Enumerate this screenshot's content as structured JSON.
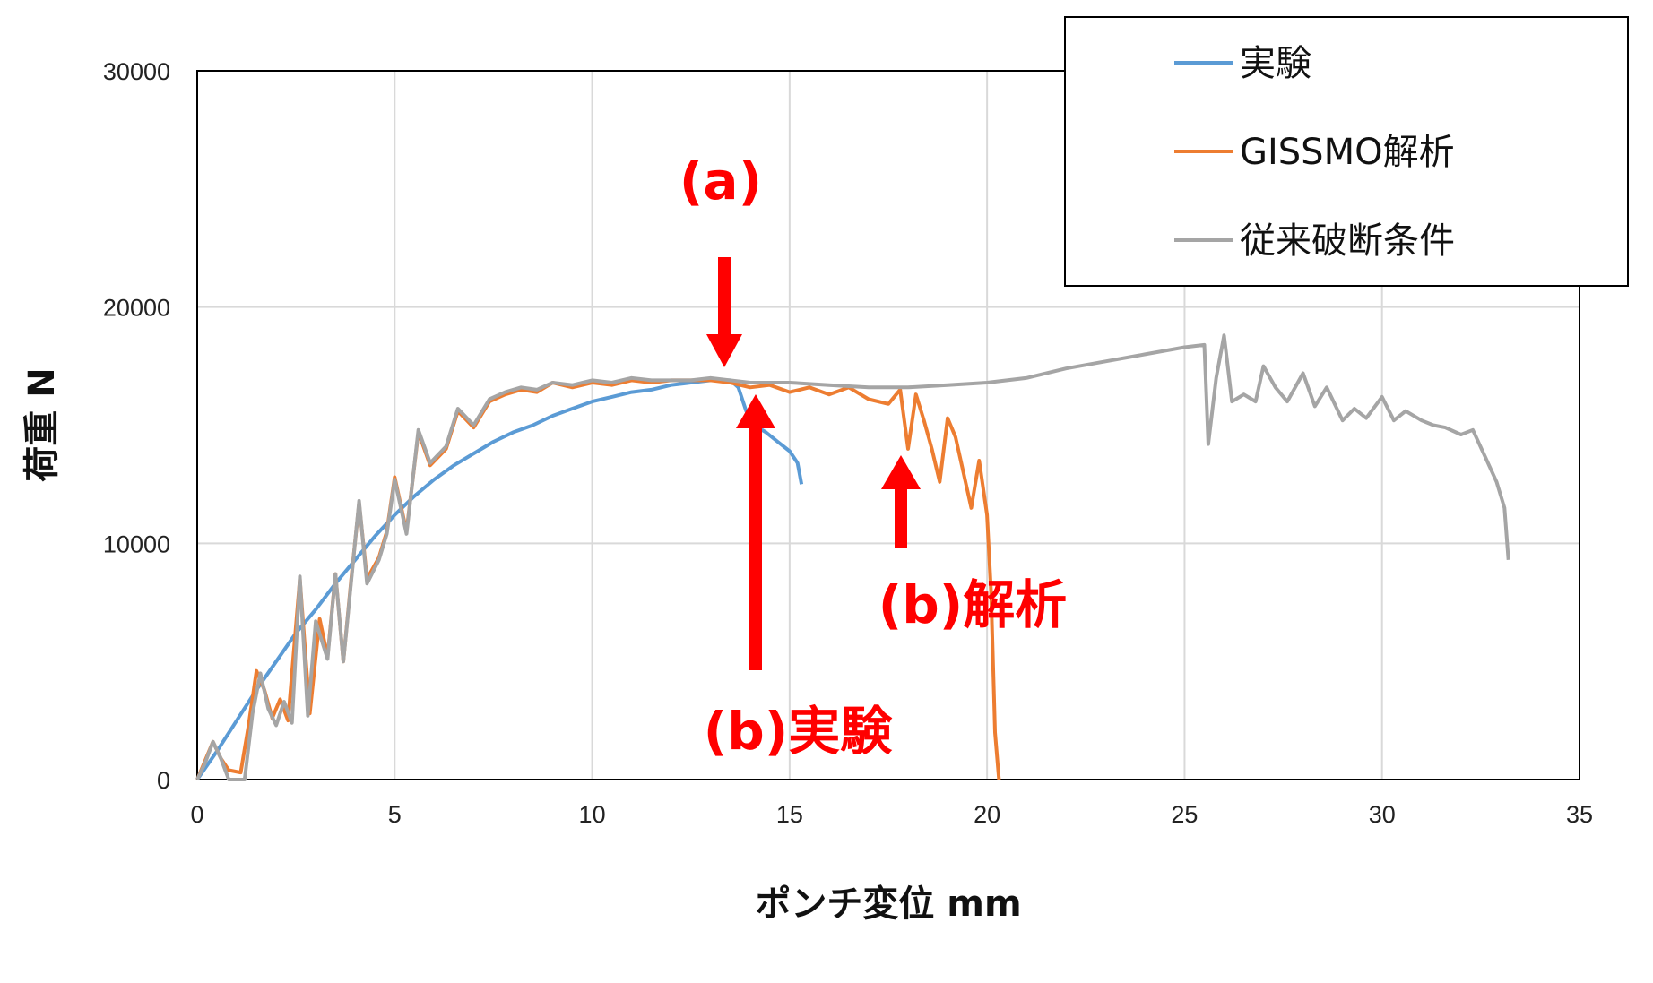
{
  "chart_data": {
    "type": "line",
    "xlabel": "ポンチ変位 mm",
    "ylabel": "荷重 N",
    "xlim": [
      0,
      35
    ],
    "ylim": [
      0,
      30000
    ],
    "x_ticks": [
      0,
      5,
      10,
      15,
      20,
      25,
      30,
      35
    ],
    "y_ticks": [
      0,
      10000,
      20000,
      30000
    ],
    "x_tick_labels": [
      "0",
      "5",
      "10",
      "15",
      "20",
      "25",
      "30",
      "35"
    ],
    "y_tick_labels": [
      "0",
      "10000",
      "20000",
      "30000"
    ],
    "grid": true,
    "legend_position": "top-right",
    "series": [
      {
        "name": "実験",
        "color": "#5B9BD5",
        "points": [
          [
            0,
            0
          ],
          [
            0.5,
            1200
          ],
          [
            1,
            2500
          ],
          [
            1.5,
            3800
          ],
          [
            2,
            5000
          ],
          [
            2.5,
            6200
          ],
          [
            3,
            7200
          ],
          [
            3.5,
            8300
          ],
          [
            4,
            9300
          ],
          [
            4.5,
            10300
          ],
          [
            5,
            11200
          ],
          [
            5.5,
            12000
          ],
          [
            6,
            12700
          ],
          [
            6.5,
            13300
          ],
          [
            7,
            13800
          ],
          [
            7.5,
            14300
          ],
          [
            8,
            14700
          ],
          [
            8.5,
            15000
          ],
          [
            9,
            15400
          ],
          [
            9.5,
            15700
          ],
          [
            10,
            16000
          ],
          [
            10.5,
            16200
          ],
          [
            11,
            16400
          ],
          [
            11.5,
            16500
          ],
          [
            12,
            16700
          ],
          [
            12.5,
            16800
          ],
          [
            13,
            16900
          ],
          [
            13.5,
            16900
          ],
          [
            13.7,
            16600
          ],
          [
            13.9,
            15600
          ],
          [
            14.1,
            15000
          ],
          [
            14.4,
            14700
          ],
          [
            14.7,
            14300
          ],
          [
            15,
            13900
          ],
          [
            15.2,
            13400
          ],
          [
            15.3,
            12500
          ]
        ]
      },
      {
        "name": "GISSMO解析",
        "color": "#ED7D31",
        "points": [
          [
            0,
            0
          ],
          [
            0.2,
            800
          ],
          [
            0.4,
            1600
          ],
          [
            0.6,
            900
          ],
          [
            0.8,
            400
          ],
          [
            1.1,
            300
          ],
          [
            1.3,
            2300
          ],
          [
            1.5,
            4600
          ],
          [
            1.7,
            3800
          ],
          [
            1.9,
            2600
          ],
          [
            2.1,
            3400
          ],
          [
            2.3,
            2500
          ],
          [
            2.6,
            8500
          ],
          [
            2.85,
            2800
          ],
          [
            3.1,
            6800
          ],
          [
            3.3,
            5200
          ],
          [
            3.5,
            8700
          ],
          [
            3.7,
            5000
          ],
          [
            3.9,
            8500
          ],
          [
            4.1,
            11700
          ],
          [
            4.3,
            8500
          ],
          [
            4.6,
            9400
          ],
          [
            4.8,
            10500
          ],
          [
            5,
            12800
          ],
          [
            5.3,
            10500
          ],
          [
            5.6,
            14700
          ],
          [
            5.9,
            13300
          ],
          [
            6.3,
            14000
          ],
          [
            6.6,
            15600
          ],
          [
            7,
            14900
          ],
          [
            7.4,
            16000
          ],
          [
            7.8,
            16300
          ],
          [
            8.2,
            16500
          ],
          [
            8.6,
            16400
          ],
          [
            9,
            16800
          ],
          [
            9.5,
            16600
          ],
          [
            10,
            16800
          ],
          [
            10.5,
            16700
          ],
          [
            11,
            16900
          ],
          [
            11.5,
            16800
          ],
          [
            12,
            16900
          ],
          [
            12.5,
            16900
          ],
          [
            13,
            16900
          ],
          [
            13.5,
            16800
          ],
          [
            14,
            16600
          ],
          [
            14.5,
            16700
          ],
          [
            15,
            16400
          ],
          [
            15.5,
            16600
          ],
          [
            16,
            16300
          ],
          [
            16.5,
            16600
          ],
          [
            17,
            16100
          ],
          [
            17.5,
            15900
          ],
          [
            17.8,
            16500
          ],
          [
            18,
            14000
          ],
          [
            18.2,
            16300
          ],
          [
            18.4,
            15200
          ],
          [
            18.6,
            14000
          ],
          [
            18.8,
            12600
          ],
          [
            19,
            15300
          ],
          [
            19.2,
            14500
          ],
          [
            19.4,
            13000
          ],
          [
            19.6,
            11500
          ],
          [
            19.8,
            13500
          ],
          [
            20,
            11200
          ],
          [
            20.1,
            8000
          ],
          [
            20.2,
            2000
          ],
          [
            20.3,
            0
          ]
        ]
      },
      {
        "name": "従来破断条件",
        "color": "#A5A5A5",
        "points": [
          [
            0,
            0
          ],
          [
            0.2,
            700
          ],
          [
            0.4,
            1600
          ],
          [
            0.6,
            900
          ],
          [
            0.8,
            0
          ],
          [
            1.2,
            0
          ],
          [
            1.4,
            2800
          ],
          [
            1.6,
            4500
          ],
          [
            1.8,
            3000
          ],
          [
            2,
            2300
          ],
          [
            2.2,
            3300
          ],
          [
            2.4,
            2400
          ],
          [
            2.6,
            8600
          ],
          [
            2.8,
            2700
          ],
          [
            3.0,
            6700
          ],
          [
            3.3,
            5100
          ],
          [
            3.5,
            8700
          ],
          [
            3.7,
            5000
          ],
          [
            3.9,
            8400
          ],
          [
            4.1,
            11800
          ],
          [
            4.3,
            8300
          ],
          [
            4.6,
            9300
          ],
          [
            4.8,
            10400
          ],
          [
            5,
            12700
          ],
          [
            5.3,
            10400
          ],
          [
            5.6,
            14800
          ],
          [
            5.9,
            13400
          ],
          [
            6.3,
            14100
          ],
          [
            6.6,
            15700
          ],
          [
            7,
            15000
          ],
          [
            7.4,
            16100
          ],
          [
            7.8,
            16400
          ],
          [
            8.2,
            16600
          ],
          [
            8.6,
            16500
          ],
          [
            9,
            16800
          ],
          [
            9.5,
            16700
          ],
          [
            10,
            16900
          ],
          [
            10.5,
            16800
          ],
          [
            11,
            17000
          ],
          [
            11.5,
            16900
          ],
          [
            12,
            16900
          ],
          [
            12.5,
            16900
          ],
          [
            13,
            17000
          ],
          [
            14,
            16800
          ],
          [
            15,
            16800
          ],
          [
            16,
            16700
          ],
          [
            17,
            16600
          ],
          [
            18,
            16600
          ],
          [
            19,
            16700
          ],
          [
            20,
            16800
          ],
          [
            21,
            17000
          ],
          [
            22,
            17400
          ],
          [
            23,
            17700
          ],
          [
            24,
            18000
          ],
          [
            25,
            18300
          ],
          [
            25.5,
            18400
          ],
          [
            25.6,
            14200
          ],
          [
            25.8,
            17000
          ],
          [
            26,
            18800
          ],
          [
            26.2,
            16000
          ],
          [
            26.5,
            16300
          ],
          [
            26.8,
            16000
          ],
          [
            27,
            17500
          ],
          [
            27.3,
            16600
          ],
          [
            27.6,
            16000
          ],
          [
            28,
            17200
          ],
          [
            28.3,
            15800
          ],
          [
            28.6,
            16600
          ],
          [
            29,
            15200
          ],
          [
            29.3,
            15700
          ],
          [
            29.6,
            15300
          ],
          [
            30,
            16200
          ],
          [
            30.3,
            15200
          ],
          [
            30.6,
            15600
          ],
          [
            31,
            15200
          ],
          [
            31.3,
            15000
          ],
          [
            31.6,
            14900
          ],
          [
            32,
            14600
          ],
          [
            32.3,
            14800
          ],
          [
            32.6,
            13700
          ],
          [
            32.9,
            12600
          ],
          [
            33.1,
            11500
          ],
          [
            33.2,
            9300
          ]
        ]
      }
    ],
    "annotations": [
      {
        "text": "(a)",
        "arrow_dir": "down",
        "x": 13.6
      },
      {
        "text": "(b)実験",
        "arrow_dir": "up",
        "x": 14.2
      },
      {
        "text": "(b)解析",
        "arrow_dir": "up",
        "x": 17.8
      }
    ],
    "annotation_color": "#ff0000"
  }
}
